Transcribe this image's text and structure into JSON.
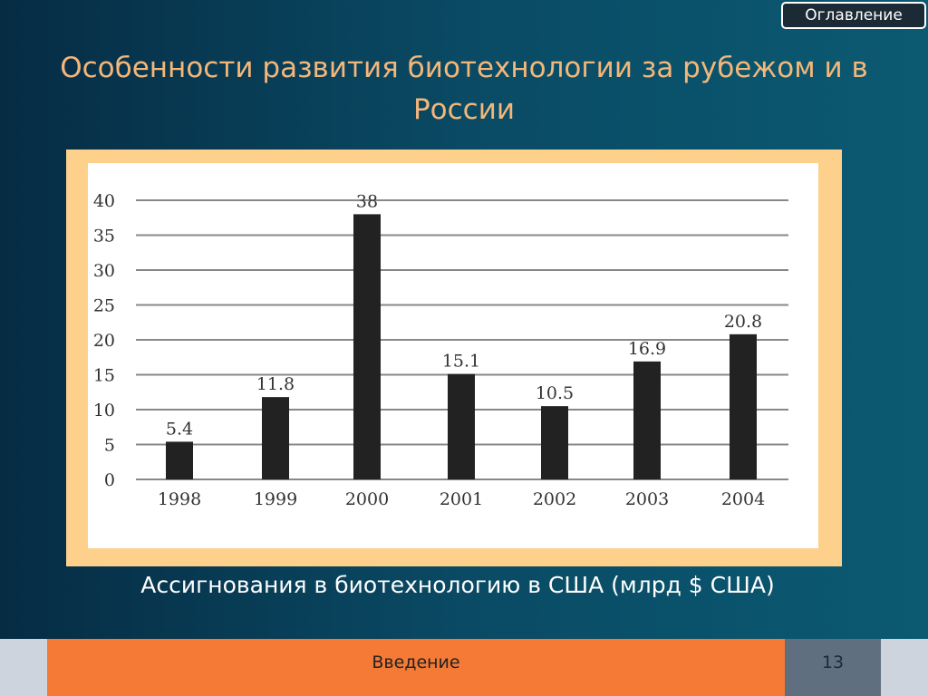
{
  "toc_button": "Оглавление",
  "title": "Особенности развития биотехнологии за рубежом и в России",
  "caption": "Ассигнования в биотехнологию  в США (млрд $ США)",
  "footer": {
    "section": "Введение",
    "page": "13"
  },
  "colors": {
    "panel_border": "#fdd08c",
    "bar": "#222222",
    "footer_orange": "#f47a35",
    "title": "#f4b77a"
  },
  "chart_data": {
    "type": "bar",
    "categories": [
      "1998",
      "1999",
      "2000",
      "2001",
      "2002",
      "2003",
      "2004"
    ],
    "values": [
      5.4,
      11.8,
      38,
      15.1,
      10.5,
      16.9,
      20.8
    ],
    "data_labels": [
      "5.4",
      "11.8",
      "38",
      "15.1",
      "10.5",
      "16.9",
      "20.8"
    ],
    "yticks": [
      0,
      5,
      10,
      15,
      20,
      25,
      30,
      35,
      40
    ],
    "ylim": [
      0,
      40
    ],
    "grid": true,
    "xlabel": "",
    "ylabel": ""
  }
}
